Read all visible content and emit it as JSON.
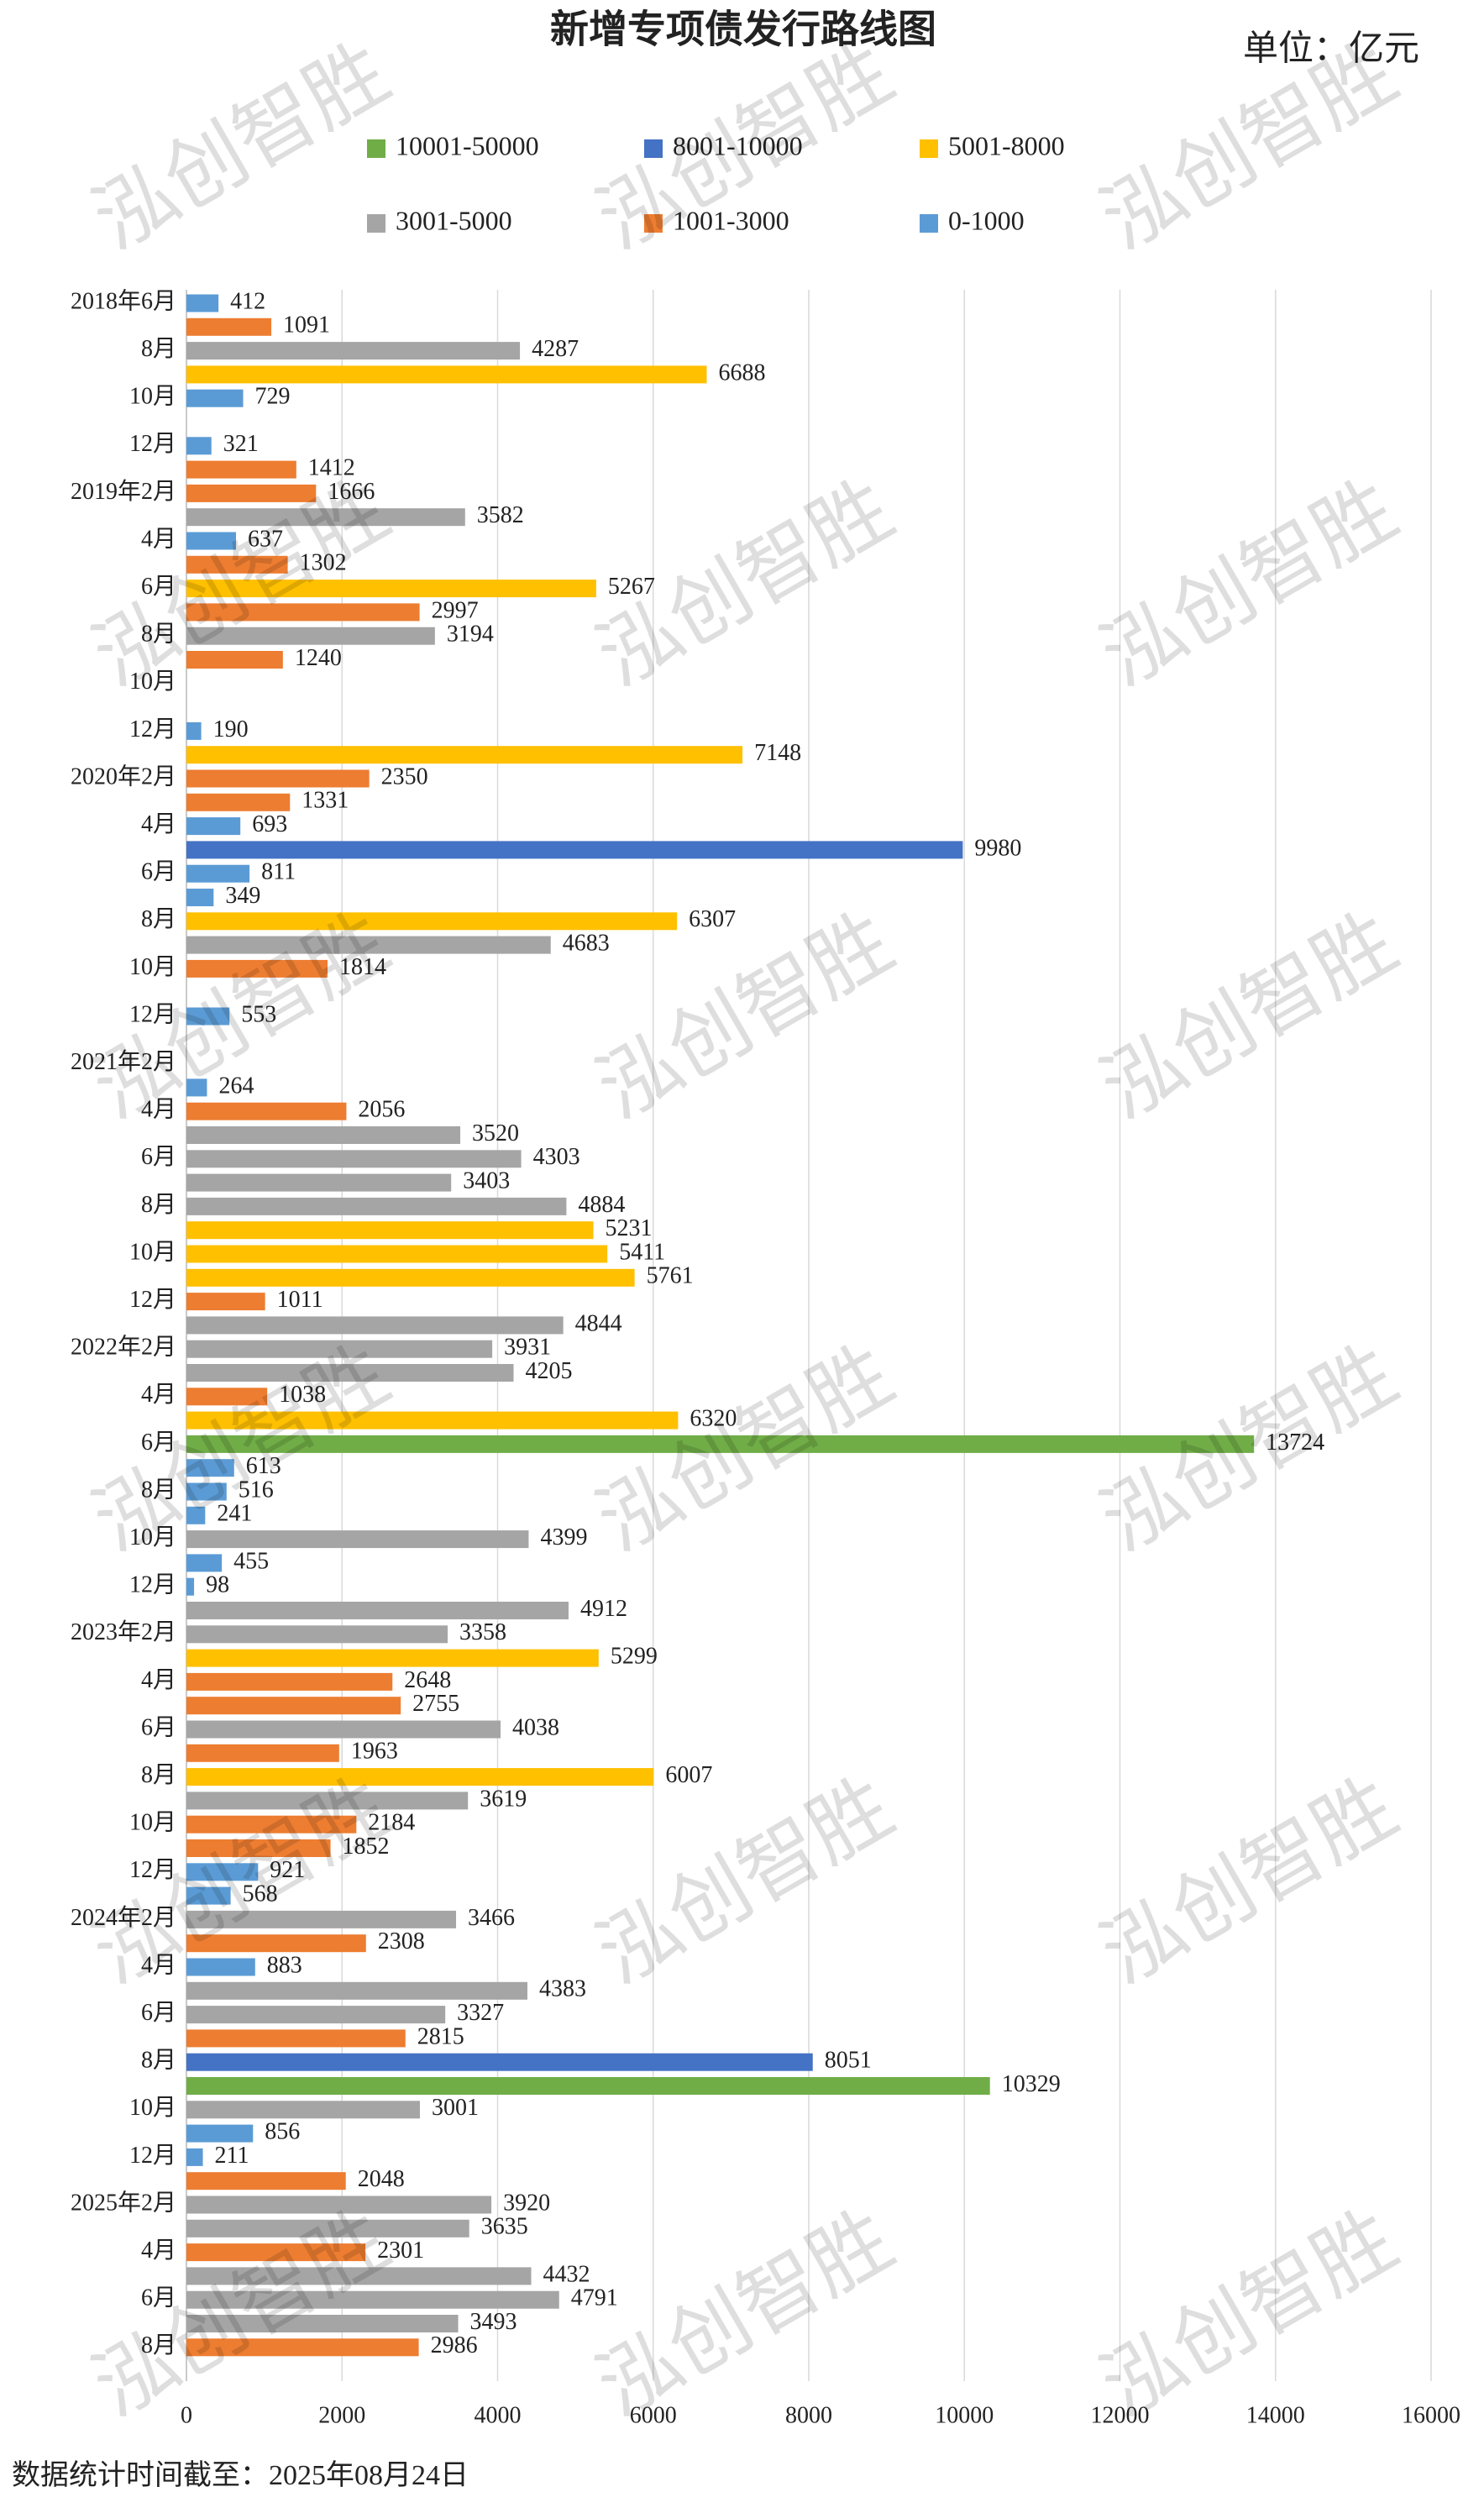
{
  "chart_data": {
    "type": "bar",
    "orientation": "horizontal",
    "title": "新增专项债发行路线图",
    "unit": "单位：亿元",
    "footnote": "数据统计时间截至：2025年08月24日",
    "watermark": "泓创智胜",
    "categories": [
      "2018年6月",
      null,
      "8月",
      null,
      "10月",
      null,
      "12月",
      null,
      "2019年2月",
      null,
      "4月",
      null,
      "6月",
      null,
      "8月",
      null,
      "10月",
      null,
      "12月",
      null,
      "2020年2月",
      null,
      "4月",
      null,
      "6月",
      null,
      "8月",
      null,
      "10月",
      null,
      "12月",
      null,
      "2021年2月",
      null,
      "4月",
      null,
      "6月",
      null,
      "8月",
      null,
      "10月",
      null,
      "12月",
      null,
      "2022年2月",
      null,
      "4月",
      null,
      "6月",
      null,
      "8月",
      null,
      "10月",
      null,
      "12月",
      null,
      "2023年2月",
      null,
      "4月",
      null,
      "6月",
      null,
      "8月",
      null,
      "10月",
      null,
      "12月",
      null,
      "2024年2月",
      null,
      "4月",
      null,
      "6月",
      null,
      "8月",
      null,
      "10月",
      null,
      "12月",
      null,
      "2025年2月",
      null,
      "4月",
      null,
      "6月",
      null,
      "8月"
    ],
    "series": [
      {
        "name": "10001-50000",
        "color": "#70ad47",
        "values": [
          null,
          null,
          null,
          null,
          null,
          null,
          null,
          null,
          null,
          null,
          null,
          null,
          null,
          null,
          null,
          null,
          null,
          null,
          null,
          null,
          null,
          null,
          null,
          null,
          null,
          null,
          null,
          null,
          null,
          null,
          null,
          null,
          null,
          null,
          null,
          null,
          null,
          null,
          null,
          null,
          null,
          null,
          null,
          null,
          null,
          null,
          null,
          null,
          13724,
          null,
          null,
          null,
          null,
          null,
          null,
          null,
          null,
          null,
          null,
          null,
          null,
          null,
          null,
          null,
          null,
          null,
          null,
          null,
          null,
          null,
          null,
          null,
          null,
          null,
          null,
          10329,
          null,
          null,
          null,
          null,
          null,
          null,
          null,
          null,
          null,
          null,
          null
        ]
      },
      {
        "name": "8001-10000",
        "color": "#4472c4",
        "values": [
          null,
          null,
          null,
          null,
          null,
          null,
          null,
          null,
          null,
          null,
          null,
          null,
          null,
          null,
          null,
          null,
          null,
          null,
          null,
          null,
          null,
          null,
          null,
          9980,
          null,
          null,
          null,
          null,
          null,
          null,
          null,
          null,
          null,
          null,
          null,
          null,
          null,
          null,
          null,
          null,
          null,
          null,
          null,
          null,
          null,
          null,
          null,
          null,
          null,
          null,
          null,
          null,
          null,
          null,
          null,
          null,
          null,
          null,
          null,
          null,
          null,
          null,
          null,
          null,
          null,
          null,
          null,
          null,
          null,
          null,
          null,
          null,
          null,
          null,
          8051,
          null,
          null,
          null,
          null,
          null,
          null,
          null,
          null,
          null,
          null,
          null,
          null
        ]
      },
      {
        "name": "5001-8000",
        "color": "#ffc000",
        "values": [
          null,
          null,
          null,
          6688,
          null,
          null,
          null,
          null,
          null,
          null,
          null,
          null,
          5267,
          null,
          null,
          null,
          null,
          null,
          null,
          7148,
          null,
          null,
          null,
          null,
          null,
          null,
          6307,
          null,
          null,
          null,
          null,
          null,
          null,
          null,
          null,
          null,
          null,
          null,
          null,
          5231,
          5411,
          5761,
          null,
          null,
          null,
          null,
          null,
          6320,
          null,
          null,
          null,
          null,
          null,
          null,
          null,
          null,
          null,
          5299,
          null,
          null,
          null,
          null,
          6007,
          null,
          null,
          null,
          null,
          null,
          null,
          null,
          null,
          null,
          null,
          null,
          null,
          null,
          null,
          null,
          null,
          null,
          null,
          null,
          null,
          null,
          null,
          null,
          null
        ]
      },
      {
        "name": "3001-5000",
        "color": "#a5a5a5",
        "values": [
          null,
          null,
          4287,
          null,
          null,
          null,
          null,
          null,
          null,
          3582,
          null,
          null,
          null,
          null,
          3194,
          null,
          null,
          null,
          null,
          null,
          null,
          null,
          null,
          null,
          null,
          null,
          null,
          4683,
          null,
          null,
          null,
          null,
          null,
          null,
          null,
          3520,
          4303,
          3403,
          4884,
          null,
          null,
          null,
          null,
          4844,
          3931,
          4205,
          null,
          null,
          null,
          null,
          null,
          null,
          4399,
          null,
          null,
          4912,
          3358,
          null,
          null,
          null,
          4038,
          null,
          null,
          3619,
          null,
          null,
          null,
          null,
          3466,
          null,
          null,
          4383,
          3327,
          null,
          null,
          null,
          3001,
          null,
          null,
          null,
          3920,
          3635,
          null,
          4432,
          4791,
          3493,
          null
        ]
      },
      {
        "name": "1001-3000",
        "color": "#ed7d31",
        "values": [
          null,
          1091,
          null,
          null,
          null,
          null,
          null,
          1412,
          1666,
          null,
          null,
          1302,
          null,
          2997,
          null,
          1240,
          null,
          null,
          null,
          null,
          2350,
          1331,
          null,
          null,
          null,
          null,
          null,
          null,
          1814,
          null,
          null,
          null,
          null,
          null,
          2056,
          null,
          null,
          null,
          null,
          null,
          null,
          null,
          1011,
          null,
          null,
          null,
          1038,
          null,
          null,
          null,
          null,
          null,
          null,
          null,
          null,
          null,
          null,
          null,
          2648,
          2755,
          null,
          1963,
          null,
          null,
          2184,
          1852,
          null,
          null,
          null,
          2308,
          null,
          null,
          null,
          2815,
          null,
          null,
          null,
          null,
          null,
          2048,
          null,
          null,
          2301,
          null,
          null,
          null,
          2986
        ]
      },
      {
        "name": "0-1000",
        "color": "#5b9bd5",
        "values": [
          412,
          null,
          null,
          null,
          729,
          null,
          321,
          null,
          null,
          null,
          637,
          null,
          null,
          null,
          null,
          null,
          null,
          null,
          190,
          null,
          null,
          null,
          693,
          null,
          811,
          349,
          null,
          null,
          null,
          null,
          553,
          null,
          null,
          264,
          null,
          null,
          null,
          null,
          null,
          null,
          null,
          null,
          null,
          null,
          null,
          null,
          null,
          null,
          null,
          613,
          516,
          241,
          null,
          455,
          98,
          null,
          null,
          null,
          null,
          null,
          null,
          null,
          null,
          null,
          null,
          null,
          921,
          568,
          null,
          null,
          883,
          null,
          null,
          null,
          null,
          null,
          null,
          856,
          211,
          null,
          null,
          null,
          null,
          null,
          null,
          null,
          null
        ]
      }
    ],
    "xlim": [
      0,
      16000
    ],
    "xticks": [
      0,
      2000,
      4000,
      6000,
      8000,
      10000,
      12000,
      14000,
      16000
    ],
    "grid": true,
    "legend": "top"
  }
}
